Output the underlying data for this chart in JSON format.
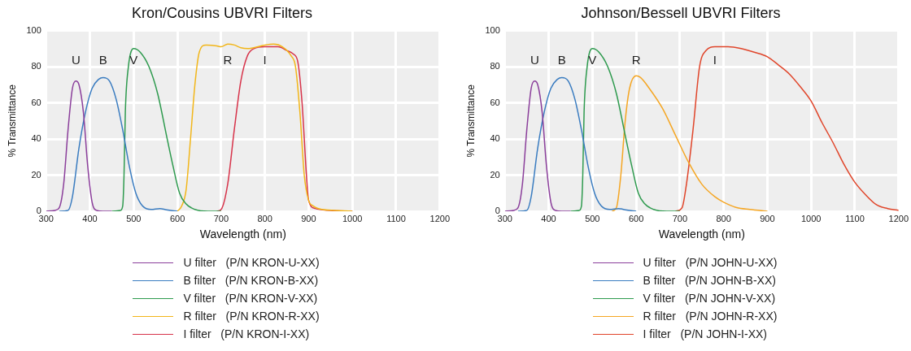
{
  "chart_data": [
    {
      "type": "line",
      "title": "Kron/Cousins UBVRI Filters",
      "xlabel": "Wavelength (nm)",
      "ylabel": "% Transmittance",
      "xlim": [
        300,
        1200
      ],
      "ylim": [
        0,
        100
      ],
      "xticks": [
        300,
        400,
        500,
        600,
        700,
        800,
        900,
        1000,
        1100,
        1200
      ],
      "yticks": [
        0,
        20,
        40,
        60,
        80,
        100
      ],
      "grid": true,
      "legend": "bottom",
      "marker": "none",
      "annotations": [
        "U",
        "B",
        "V",
        "R",
        "I"
      ],
      "series": [
        {
          "name": "U filter   (P/N KRON-U-XX)",
          "color": "#8b3f9b",
          "x": [
            300,
            320,
            330,
            340,
            350,
            360,
            368,
            375,
            385,
            395,
            405,
            415,
            430,
            450
          ],
          "values": [
            0,
            0.5,
            2,
            15,
            45,
            68,
            72,
            70,
            55,
            25,
            5,
            0.5,
            0,
            0
          ]
        },
        {
          "name": "B filter   (P/N KRON-B-XX)",
          "color": "#3a7cc0",
          "x": [
            330,
            350,
            360,
            375,
            390,
            405,
            420,
            430,
            445,
            460,
            475,
            490,
            505,
            520,
            540,
            560,
            575,
            600
          ],
          "values": [
            0,
            0.5,
            8,
            35,
            55,
            68,
            73,
            74,
            72,
            62,
            45,
            25,
            10,
            3,
            1,
            1.5,
            0.8,
            0
          ]
        },
        {
          "name": "V filter   (P/N KRON-V-XX)",
          "color": "#2e9a4e",
          "x": [
            450,
            470,
            475,
            478,
            481,
            488,
            500,
            515,
            535,
            555,
            575,
            590,
            605,
            620,
            640,
            670,
            700
          ],
          "values": [
            0,
            0.5,
            3,
            20,
            55,
            80,
            90,
            88,
            80,
            65,
            42,
            25,
            10,
            4,
            1,
            0,
            0
          ]
        },
        {
          "name": "R filter   (P/N KRON-R-XX)",
          "color": "#f2b619",
          "x": [
            600,
            610,
            620,
            630,
            640,
            650,
            665,
            690,
            700,
            715,
            730,
            745,
            760,
            800,
            820,
            840,
            860,
            870,
            880,
            890,
            900,
            910,
            930,
            960,
            1000
          ],
          "values": [
            0,
            3,
            12,
            40,
            70,
            88,
            92,
            91.5,
            91,
            92.5,
            92,
            90.5,
            90,
            92,
            92.5,
            91,
            86,
            80,
            55,
            20,
            6,
            3,
            1,
            0.5,
            0
          ]
        },
        {
          "name": "I filter   (P/N KRON-I-XX)",
          "color": "#d7334a",
          "x": [
            690,
            700,
            715,
            730,
            745,
            760,
            775,
            800,
            830,
            850,
            865,
            875,
            885,
            895,
            900,
            915,
            950,
            1000
          ],
          "values": [
            0,
            1,
            15,
            45,
            72,
            86,
            90,
            91,
            91,
            89,
            87,
            83,
            60,
            20,
            6,
            1.5,
            0.5,
            0
          ]
        }
      ]
    },
    {
      "type": "line",
      "title": "Johnson/Bessell UBVRI Filters",
      "xlabel": "Wavelength (nm)",
      "ylabel": "% Transmittance",
      "xlim": [
        300,
        1200
      ],
      "ylim": [
        0,
        100
      ],
      "xticks": [
        300,
        400,
        500,
        600,
        700,
        800,
        900,
        1000,
        1100,
        1200
      ],
      "yticks": [
        0,
        20,
        40,
        60,
        80,
        100
      ],
      "grid": true,
      "legend": "bottom",
      "marker": "none",
      "annotations": [
        "U",
        "B",
        "V",
        "R",
        "I"
      ],
      "series": [
        {
          "name": "U filter   (P/N JOHN-U-XX)",
          "color": "#8b3f9b",
          "x": [
            300,
            320,
            330,
            340,
            350,
            360,
            368,
            375,
            385,
            395,
            405,
            415,
            430,
            450
          ],
          "values": [
            0,
            0.5,
            2,
            15,
            45,
            68,
            72,
            70,
            55,
            25,
            5,
            0.5,
            0,
            0
          ]
        },
        {
          "name": "B filter   (P/N JOHN-B-XX)",
          "color": "#3a7cc0",
          "x": [
            330,
            350,
            360,
            375,
            390,
            405,
            420,
            430,
            445,
            460,
            475,
            490,
            505,
            520,
            540,
            560,
            575,
            600
          ],
          "values": [
            0,
            0.5,
            8,
            35,
            55,
            68,
            73,
            74,
            72,
            62,
            45,
            25,
            10,
            3,
            1,
            1.5,
            0.8,
            0
          ]
        },
        {
          "name": "V filter   (P/N JOHN-V-XX)",
          "color": "#2e9a4e",
          "x": [
            450,
            470,
            475,
            478,
            481,
            488,
            500,
            515,
            535,
            555,
            575,
            590,
            605,
            620,
            640,
            670,
            700
          ],
          "values": [
            0,
            0.5,
            3,
            20,
            55,
            80,
            90,
            88,
            80,
            65,
            42,
            25,
            10,
            4,
            1,
            0,
            0
          ]
        },
        {
          "name": "R filter   (P/N JOHN-R-XX)",
          "color": "#f5a623",
          "x": [
            545,
            555,
            565,
            575,
            585,
            600,
            610,
            630,
            660,
            690,
            720,
            750,
            780,
            800,
            830,
            860,
            900
          ],
          "values": [
            0,
            2,
            20,
            50,
            68,
            75,
            74,
            68,
            57,
            42,
            27,
            15,
            8,
            5,
            2,
            1,
            0
          ]
        },
        {
          "name": "I filter   (P/N JOHN-I-XX)",
          "color": "#e0452a",
          "x": [
            690,
            705,
            715,
            730,
            745,
            760,
            780,
            810,
            840,
            870,
            900,
            925,
            950,
            975,
            1000,
            1025,
            1050,
            1075,
            1100,
            1125,
            1150,
            1175,
            1200
          ],
          "values": [
            0,
            2,
            15,
            45,
            80,
            89,
            91,
            91,
            90,
            88,
            85.5,
            81,
            76,
            69,
            61,
            49,
            38,
            26,
            16,
            9,
            3.5,
            1.5,
            0.5
          ]
        }
      ]
    }
  ]
}
